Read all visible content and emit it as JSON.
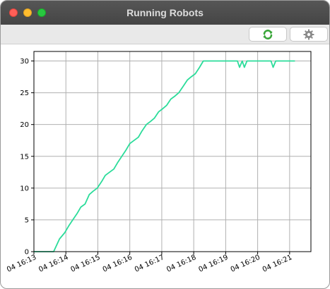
{
  "window": {
    "title": "Running Robots"
  },
  "toolbar": {
    "refresh_icon": "refresh-icon",
    "settings_icon": "gear-icon"
  },
  "colors": {
    "line": "#2bdc9a",
    "grid": "#b0b0b0",
    "refresh_green": "#3aa63a"
  },
  "chart_data": {
    "type": "line",
    "title": "",
    "xlabel": "",
    "ylabel": "",
    "ylim": [
      0,
      31.5
    ],
    "xlim": [
      "04 16:13",
      "04 16:21:40"
    ],
    "grid": true,
    "yticks": [
      0,
      5,
      10,
      15,
      20,
      25,
      30
    ],
    "xtick_labels": [
      "04 16:13",
      "04 16:14",
      "04 16:15",
      "04 16:16",
      "04 16:17",
      "04 16:18",
      "04 16:19",
      "04 16:20",
      "04 16:21"
    ],
    "series": [
      {
        "x": [
          "04 16:13:00",
          "04 16:13:37",
          "04 16:13:48",
          "04 16:13:58",
          "04 16:14:05",
          "04 16:14:13",
          "04 16:14:21",
          "04 16:14:28",
          "04 16:14:36",
          "04 16:14:44",
          "04 16:14:51",
          "04 16:14:59",
          "04 16:15:07",
          "04 16:15:14",
          "04 16:15:22",
          "04 16:15:30",
          "04 16:15:37",
          "04 16:15:45",
          "04 16:15:53",
          "04 16:16:00",
          "04 16:16:08",
          "04 16:16:16",
          "04 16:16:23",
          "04 16:16:31",
          "04 16:16:39",
          "04 16:16:46",
          "04 16:16:54",
          "04 16:17:02",
          "04 16:17:09",
          "04 16:17:17",
          "04 16:17:25",
          "04 16:17:32",
          "04 16:17:40",
          "04 16:17:48",
          "04 16:17:55",
          "04 16:18:03",
          "04 16:18:11",
          "04 16:18:18",
          "04 16:18:26",
          "04 16:18:34",
          "04 16:18:41",
          "04 16:19:22",
          "04 16:19:26",
          "04 16:19:31",
          "04 16:19:35",
          "04 16:19:40",
          "04 16:20:00",
          "04 16:20:25",
          "04 16:20:29",
          "04 16:20:34",
          "04 16:21:10"
        ],
        "values": [
          0,
          0,
          2,
          3,
          4,
          5,
          6,
          7,
          7.5,
          9,
          9.5,
          10,
          11,
          12,
          12.5,
          13,
          14,
          15,
          16,
          17,
          17.5,
          18,
          19,
          20,
          20.5,
          21,
          22,
          22.5,
          23,
          24,
          24.5,
          25,
          26,
          27,
          27.5,
          28,
          29,
          30,
          30,
          30,
          30,
          30,
          29,
          30,
          29,
          30,
          30,
          30,
          29,
          30,
          30
        ]
      }
    ]
  }
}
